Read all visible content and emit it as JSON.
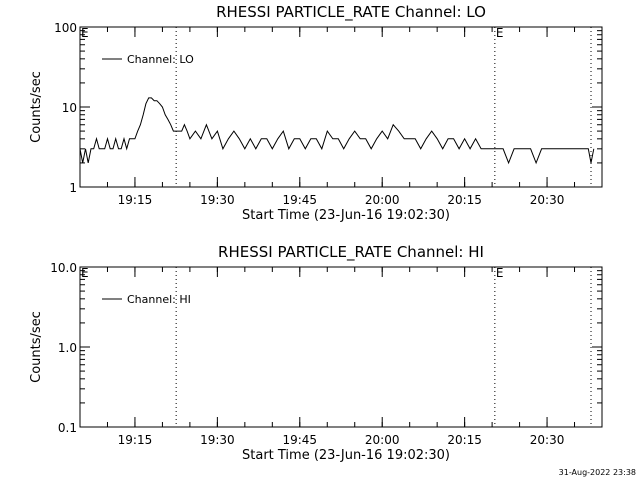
{
  "chart_data": [
    {
      "type": "line",
      "title": "RHESSI PARTICLE_RATE Channel: LO",
      "xlabel": "Start Time (23-Jun-16 19:02:30)",
      "ylabel": "Counts/sec",
      "yscale": "log",
      "ylim": [
        1,
        100
      ],
      "xlim": [
        "19:05:00",
        "20:40:00"
      ],
      "x_ticks": [
        "19:15",
        "19:30",
        "19:45",
        "20:00",
        "20:15",
        "20:30"
      ],
      "y_ticks": [
        "1",
        "10",
        "100"
      ],
      "legend": {
        "label": "Channel: LO",
        "position": "top-left"
      },
      "markers": [
        {
          "time": "19:22:30",
          "label": ""
        },
        {
          "time": "20:20:30",
          "label": "E"
        },
        {
          "time": "20:38:00",
          "label": ""
        }
      ],
      "left_marker_label": "E",
      "series": [
        {
          "name": "Channel: LO",
          "x": [
            "19:05:00",
            "19:05:30",
            "19:06:00",
            "19:06:30",
            "19:07:00",
            "19:07:30",
            "19:08:00",
            "19:08:30",
            "19:09:00",
            "19:09:30",
            "19:10:00",
            "19:10:30",
            "19:11:00",
            "19:11:30",
            "19:12:00",
            "19:12:30",
            "19:13:00",
            "19:13:30",
            "19:14:00",
            "19:14:30",
            "19:15:00",
            "19:15:30",
            "19:16:00",
            "19:16:30",
            "19:17:00",
            "19:17:30",
            "19:18:00",
            "19:18:30",
            "19:19:00",
            "19:19:30",
            "19:20:00",
            "19:20:30",
            "19:21:00",
            "19:21:30",
            "19:22:00",
            "19:22:30",
            "19:23:00",
            "19:23:30",
            "19:24:00",
            "19:24:30",
            "19:25:00",
            "19:26:00",
            "19:27:00",
            "19:28:00",
            "19:29:00",
            "19:30:00",
            "19:31:00",
            "19:32:00",
            "19:33:00",
            "19:34:00",
            "19:35:00",
            "19:36:00",
            "19:37:00",
            "19:38:00",
            "19:39:00",
            "19:40:00",
            "19:41:00",
            "19:42:00",
            "19:43:00",
            "19:44:00",
            "19:45:00",
            "19:46:00",
            "19:47:00",
            "19:48:00",
            "19:49:00",
            "19:50:00",
            "19:51:00",
            "19:52:00",
            "19:53:00",
            "19:54:00",
            "19:55:00",
            "19:56:00",
            "19:57:00",
            "19:58:00",
            "19:59:00",
            "20:00:00",
            "20:01:00",
            "20:02:00",
            "20:03:00",
            "20:04:00",
            "20:05:00",
            "20:06:00",
            "20:07:00",
            "20:08:00",
            "20:09:00",
            "20:10:00",
            "20:11:00",
            "20:12:00",
            "20:13:00",
            "20:14:00",
            "20:15:00",
            "20:16:00",
            "20:17:00",
            "20:18:00",
            "20:19:00",
            "20:20:00",
            "20:21:00",
            "20:22:00",
            "20:23:00",
            "20:24:00",
            "20:25:00",
            "20:26:00",
            "20:27:00",
            "20:28:00",
            "20:29:00",
            "20:30:00",
            "20:31:00",
            "20:32:00",
            "20:33:00",
            "20:34:00",
            "20:35:00",
            "20:36:00",
            "20:37:00",
            "20:37:30",
            "20:38:00",
            "20:38:30"
          ],
          "y": [
            3,
            2,
            3,
            2,
            3,
            3,
            4,
            3,
            3,
            3,
            4,
            3,
            3,
            4,
            3,
            3,
            4,
            3,
            4,
            4,
            4,
            5,
            6,
            8,
            11,
            13,
            13,
            12,
            12,
            11,
            10,
            8,
            7,
            6,
            5,
            5,
            5,
            5,
            6,
            5,
            4,
            5,
            4,
            6,
            4,
            5,
            3,
            4,
            5,
            4,
            3,
            4,
            3,
            4,
            4,
            3,
            4,
            5,
            3,
            4,
            4,
            3,
            4,
            4,
            3,
            5,
            4,
            4,
            3,
            4,
            5,
            4,
            4,
            3,
            4,
            5,
            4,
            6,
            5,
            4,
            4,
            4,
            3,
            4,
            5,
            4,
            3,
            4,
            4,
            3,
            4,
            3,
            4,
            3,
            3,
            3,
            3,
            3,
            2,
            3,
            3,
            3,
            3,
            2,
            3,
            3,
            3,
            3,
            3,
            3,
            3,
            3,
            3,
            3,
            2,
            3
          ]
        }
      ]
    },
    {
      "type": "line",
      "title": "RHESSI PARTICLE_RATE Channel: HI",
      "xlabel": "Start Time (23-Jun-16 19:02:30)",
      "ylabel": "Counts/sec",
      "yscale": "log",
      "ylim": [
        0.1,
        10
      ],
      "xlim": [
        "19:05:00",
        "20:40:00"
      ],
      "x_ticks": [
        "19:15",
        "19:30",
        "19:45",
        "20:00",
        "20:15",
        "20:30"
      ],
      "y_ticks": [
        "0.1",
        "1.0",
        "10.0"
      ],
      "legend": {
        "label": "Channel: HI",
        "position": "top-left"
      },
      "markers": [
        {
          "time": "19:22:30",
          "label": ""
        },
        {
          "time": "20:20:30",
          "label": "E"
        },
        {
          "time": "20:38:00",
          "label": ""
        }
      ],
      "left_marker_label": "E",
      "series": [
        {
          "name": "Channel: HI",
          "x": [],
          "y": []
        }
      ]
    }
  ],
  "footer": {
    "timestamp": "31-Aug-2022 23:38"
  }
}
